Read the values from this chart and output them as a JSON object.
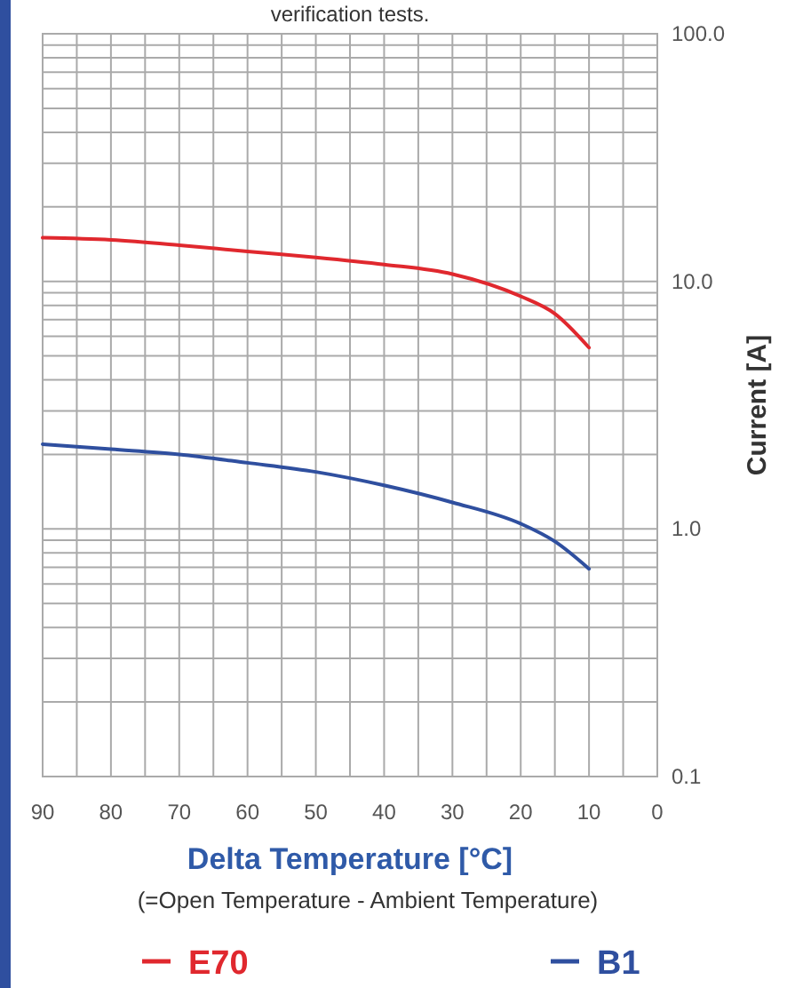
{
  "chart_data": {
    "type": "line",
    "title": "verification tests.",
    "xlabel": "Delta Temperature [°C]",
    "ylabel": "Current [A]",
    "annotations": [
      "(=Open Temperature - Ambient Temperature)"
    ],
    "log": "y",
    "grid": true,
    "legend": "bottom",
    "marker": "none",
    "line_style": "solid",
    "xlim": [
      90,
      0
    ],
    "ylim": [
      0.1,
      100
    ],
    "xticks": [
      90,
      {
        "value": 85,
        "label": null
      },
      80,
      {
        "value": 75,
        "label": null
      },
      70,
      {
        "value": 65,
        "label": null
      },
      60,
      {
        "value": 55,
        "label": null
      },
      50,
      {
        "value": 45,
        "label": null
      },
      40,
      {
        "value": 35,
        "label": null
      },
      30,
      {
        "value": 25,
        "label": null
      },
      20,
      {
        "value": 15,
        "label": null
      },
      10,
      {
        "value": 5,
        "label": null
      },
      0
    ],
    "yticks": [
      {
        "value": 0.1,
        "label": "0.1"
      },
      {
        "value": 0.2,
        "label": null
      },
      {
        "value": 0.3,
        "label": null
      },
      {
        "value": 0.4,
        "label": null
      },
      {
        "value": 0.5,
        "label": null
      },
      {
        "value": 0.6,
        "label": null
      },
      {
        "value": 0.7,
        "label": null
      },
      {
        "value": 0.8,
        "label": null
      },
      {
        "value": 0.9,
        "label": null
      },
      {
        "value": 1,
        "label": "1.0"
      },
      {
        "value": 2,
        "label": null
      },
      {
        "value": 3,
        "label": null
      },
      {
        "value": 4,
        "label": null
      },
      {
        "value": 5,
        "label": null
      },
      {
        "value": 6,
        "label": null
      },
      {
        "value": 7,
        "label": null
      },
      {
        "value": 8,
        "label": null
      },
      {
        "value": 9,
        "label": null
      },
      {
        "value": 10,
        "label": "10.0"
      },
      {
        "value": 20,
        "label": null
      },
      {
        "value": 30,
        "label": null
      },
      {
        "value": 40,
        "label": null
      },
      {
        "value": 50,
        "label": null
      },
      {
        "value": 60,
        "label": null
      },
      {
        "value": 70,
        "label": null
      },
      {
        "value": 80,
        "label": null
      },
      {
        "value": 90,
        "label": null
      },
      {
        "value": 100,
        "label": "100.0"
      }
    ],
    "x": [
      90,
      80,
      70,
      60,
      50,
      40,
      30,
      20,
      15,
      10
    ],
    "series": [
      {
        "name": "E70",
        "color": "#e0282e",
        "values": [
          15,
          14.7,
          14,
          13.2,
          12.5,
          11.7,
          10.7,
          8.7,
          7.4,
          5.4
        ]
      },
      {
        "name": "B1",
        "color": "#2f4f9f",
        "values": [
          2.2,
          2.1,
          2.0,
          1.85,
          1.7,
          1.5,
          1.28,
          1.05,
          0.89,
          0.69
        ]
      }
    ]
  }
}
